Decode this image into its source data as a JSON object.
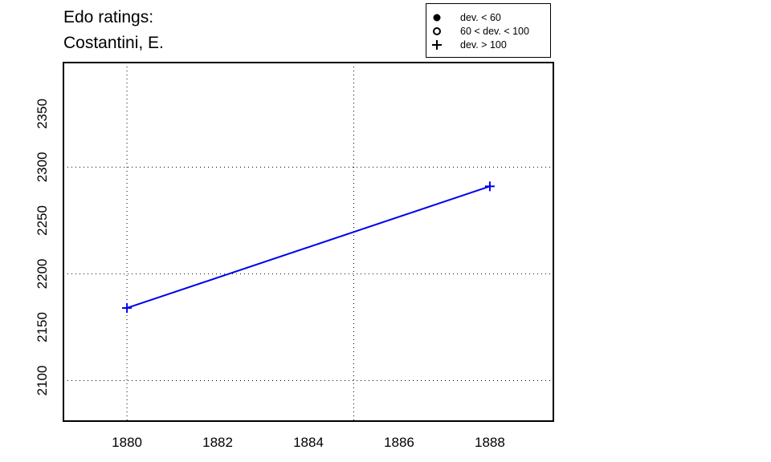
{
  "chart_data": {
    "type": "line",
    "title": "Edo ratings:",
    "subtitle": "Costantini, E.",
    "xlabel": "",
    "ylabel": "",
    "xlim": [
      1878.6,
      1889.4
    ],
    "ylim": [
      2062,
      2398
    ],
    "x_ticks": [
      1880,
      1882,
      1884,
      1886,
      1888
    ],
    "y_ticks": [
      2100,
      2150,
      2200,
      2250,
      2300,
      2350
    ],
    "x_grid": [
      1880,
      1885
    ],
    "y_grid": [
      2100,
      2200,
      2300
    ],
    "grid": "dotted",
    "series": [
      {
        "color": "#0000ee",
        "marker": "plus",
        "points": [
          {
            "x": 1880,
            "y": 2168
          },
          {
            "x": 1888,
            "y": 2282
          }
        ]
      }
    ],
    "legend": {
      "position": "top-right",
      "items": [
        {
          "symbol": "filled-circle",
          "label": "dev. < 60"
        },
        {
          "symbol": "open-circle",
          "label": "60 < dev. < 100"
        },
        {
          "symbol": "plus",
          "label": "dev. > 100"
        }
      ]
    }
  }
}
